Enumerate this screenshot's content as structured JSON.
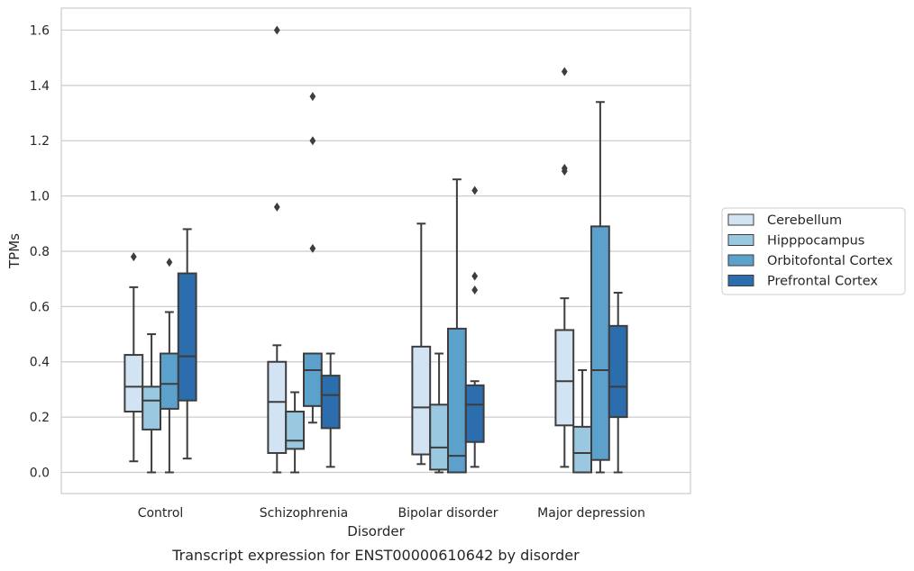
{
  "chart_data": {
    "type": "box",
    "title": "",
    "caption": "Transcript expression for ENST00000610642 by disorder",
    "xlabel": "Disorder",
    "ylabel": "TPMs",
    "ylim": [
      -0.08,
      1.68
    ],
    "yticks": [
      0.0,
      0.2,
      0.4,
      0.6,
      0.8,
      1.0,
      1.2,
      1.4,
      1.6
    ],
    "ytick_labels": [
      "0.0",
      "0.2",
      "0.4",
      "0.6",
      "0.8",
      "1.0",
      "1.2",
      "1.4",
      "1.6"
    ],
    "grid": true,
    "legend_position": "right",
    "categories": [
      "Control",
      "Schizophrenia",
      "Bipolar disorder",
      "Major depression"
    ],
    "series": [
      {
        "name": "Cerebellum",
        "color": "#d2e3f3",
        "boxes": [
          {
            "whisker_low": 0.04,
            "q1": 0.22,
            "median": 0.31,
            "q3": 0.425,
            "whisker_high": 0.67,
            "outliers": [
              0.78
            ]
          },
          {
            "whisker_low": 0.0,
            "q1": 0.07,
            "median": 0.255,
            "q3": 0.4,
            "whisker_high": 0.46,
            "outliers": [
              0.96,
              1.6
            ]
          },
          {
            "whisker_low": 0.03,
            "q1": 0.065,
            "median": 0.235,
            "q3": 0.455,
            "whisker_high": 0.9,
            "outliers": []
          },
          {
            "whisker_low": 0.02,
            "q1": 0.17,
            "median": 0.33,
            "q3": 0.515,
            "whisker_high": 0.63,
            "outliers": [
              1.09,
              1.1,
              1.45
            ]
          }
        ]
      },
      {
        "name": "Hipppocampus",
        "color": "#9ac8e0",
        "boxes": [
          {
            "whisker_low": 0.0,
            "q1": 0.155,
            "median": 0.26,
            "q3": 0.31,
            "whisker_high": 0.5,
            "outliers": []
          },
          {
            "whisker_low": 0.0,
            "q1": 0.085,
            "median": 0.115,
            "q3": 0.22,
            "whisker_high": 0.29,
            "outliers": []
          },
          {
            "whisker_low": 0.0,
            "q1": 0.01,
            "median": 0.09,
            "q3": 0.245,
            "whisker_high": 0.43,
            "outliers": []
          },
          {
            "whisker_low": 0.0,
            "q1": 0.0,
            "median": 0.07,
            "q3": 0.165,
            "whisker_high": 0.37,
            "outliers": []
          }
        ]
      },
      {
        "name": "Orbitofontal Cortex",
        "color": "#5ca0cc",
        "boxes": [
          {
            "whisker_low": 0.0,
            "q1": 0.23,
            "median": 0.32,
            "q3": 0.43,
            "whisker_high": 0.58,
            "outliers": [
              0.76
            ]
          },
          {
            "whisker_low": 0.18,
            "q1": 0.24,
            "median": 0.37,
            "q3": 0.43,
            "whisker_high": 0.43,
            "outliers": [
              0.81,
              1.2,
              1.36
            ]
          },
          {
            "whisker_low": 0.0,
            "q1": 0.0,
            "median": 0.06,
            "q3": 0.52,
            "whisker_high": 1.06,
            "outliers": []
          },
          {
            "whisker_low": 0.0,
            "q1": 0.045,
            "median": 0.37,
            "q3": 0.89,
            "whisker_high": 1.34,
            "outliers": []
          }
        ]
      },
      {
        "name": "Prefrontal Cortex",
        "color": "#2c6dad",
        "boxes": [
          {
            "whisker_low": 0.05,
            "q1": 0.26,
            "median": 0.42,
            "q3": 0.72,
            "whisker_high": 0.88,
            "outliers": []
          },
          {
            "whisker_low": 0.02,
            "q1": 0.16,
            "median": 0.28,
            "q3": 0.35,
            "whisker_high": 0.43,
            "outliers": []
          },
          {
            "whisker_low": 0.02,
            "q1": 0.11,
            "median": 0.245,
            "q3": 0.315,
            "whisker_high": 0.33,
            "outliers": [
              0.66,
              0.71,
              1.02
            ]
          },
          {
            "whisker_low": 0.0,
            "q1": 0.2,
            "median": 0.31,
            "q3": 0.53,
            "whisker_high": 0.65,
            "outliers": []
          }
        ]
      }
    ]
  }
}
